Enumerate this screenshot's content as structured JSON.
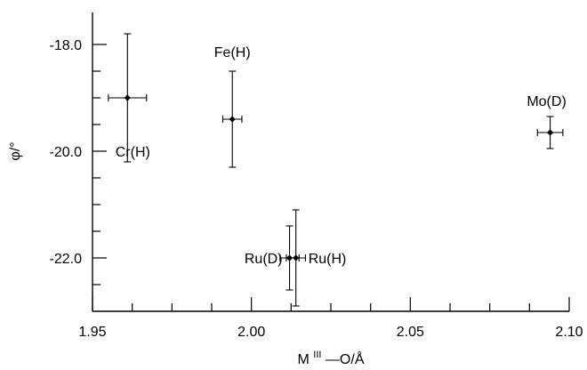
{
  "chart_data": {
    "type": "scatter",
    "title": "",
    "xlabel": {
      "prefix": "M",
      "superscript": "III",
      "suffix": "—O/Å"
    },
    "ylabel": "φ/°",
    "xlim": [
      1.95,
      2.1
    ],
    "ylim": [
      -23.0,
      -17.4
    ],
    "x_ticks_major": [
      1.95,
      2.0,
      2.05,
      2.1
    ],
    "x_tick_labels": [
      "1.95",
      "2.00",
      "2.05",
      "2.10"
    ],
    "y_ticks_major": [
      -18.0,
      -20.0,
      -22.0
    ],
    "y_tick_labels": [
      "-18.0",
      "-20.0",
      "-22.0"
    ],
    "grid": false,
    "points": [
      {
        "label": "Cr(H)",
        "x": 1.961,
        "y": -19.0,
        "x_err": 0.006,
        "y_err": 1.2
      },
      {
        "label": "Fe(H)",
        "x": 1.994,
        "y": -19.4,
        "x_err": 0.003,
        "y_err": 0.9
      },
      {
        "label": "Ru(D)",
        "x": 2.012,
        "y": -22.0,
        "x_err": 0.003,
        "y_err": 0.6
      },
      {
        "label": "Ru(H)",
        "x": 2.014,
        "y": -22.0,
        "x_err": 0.003,
        "y_err": 0.9
      },
      {
        "label": "Mo(D)",
        "x": 2.094,
        "y": -19.65,
        "x_err": 0.004,
        "y_err": 0.3
      }
    ]
  }
}
